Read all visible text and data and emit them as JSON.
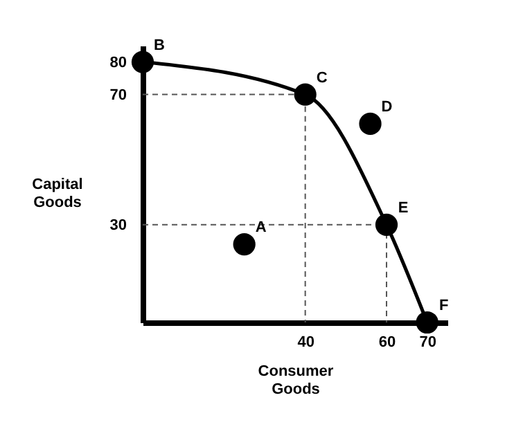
{
  "chart_data": {
    "type": "line",
    "xlabel": "Consumer Goods",
    "ylabel": "Capital Goods",
    "xlim": [
      0,
      75
    ],
    "ylim": [
      0,
      85
    ],
    "xticks": [
      40,
      60,
      70
    ],
    "yticks": [
      30,
      70,
      80
    ],
    "grid": false,
    "series": [
      {
        "x": [
          0,
          40,
          60,
          70
        ],
        "values": [
          80,
          70,
          30,
          0
        ],
        "color": "#000000",
        "line_style": "solid",
        "marker": "none"
      },
      {
        "x": [
          0,
          40,
          40
        ],
        "values": [
          70,
          70,
          0
        ],
        "color": "#555555",
        "line_style": "dashed",
        "marker": "none"
      },
      {
        "x": [
          0,
          60,
          60
        ],
        "values": [
          30,
          30,
          0
        ],
        "color": "#555555",
        "line_style": "dashed",
        "marker": "none"
      },
      {
        "type": "scatter",
        "x": [
          25,
          0,
          40,
          56,
          60,
          70
        ],
        "values": [
          24,
          80,
          70,
          61,
          30,
          0
        ],
        "color": "#000000",
        "marker": "circle"
      }
    ],
    "annotations": [
      {
        "text": "A",
        "x": 25,
        "y": 24
      },
      {
        "text": "B",
        "x": 0,
        "y": 80
      },
      {
        "text": "C",
        "x": 40,
        "y": 70
      },
      {
        "text": "D",
        "x": 56,
        "y": 61
      },
      {
        "text": "E",
        "x": 60,
        "y": 30
      },
      {
        "text": "F",
        "x": 70,
        "y": 0
      }
    ]
  }
}
